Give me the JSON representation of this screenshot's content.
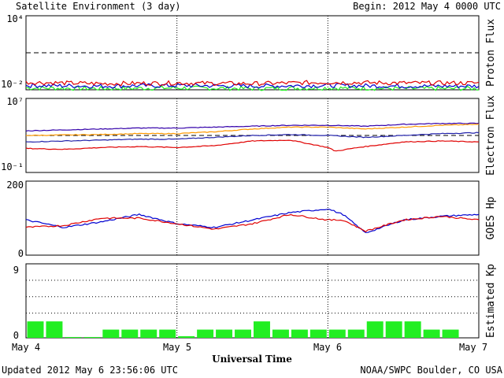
{
  "header": {
    "title": "Satellite Environment (3 day)",
    "begin": "Begin:  2012 May 4 0000 UTC"
  },
  "footer": {
    "updated": "Updated 2012 May  6 23:56:06 UTC",
    "credit": "NOAA/SWPC Boulder, CO USA",
    "xlabel": "Universal Time"
  },
  "xaxis": {
    "ticks": [
      "May 4",
      "May 5",
      "May 6",
      "May 7"
    ],
    "days": [
      0,
      1,
      2,
      3
    ],
    "range_days": [
      0,
      3
    ]
  },
  "colors": {
    "red": "#e00000",
    "blue": "#0000d0",
    "green": "#22ee22",
    "navy": "#2222aa",
    "orange": "#ff9900",
    "purple": "#3300aa",
    "dark": "#000000"
  },
  "chart_data": [
    {
      "type": "line",
      "ylabel": "Proton Flux",
      "yscale": "log",
      "ylim_exp": [
        -2,
        4
      ],
      "tick_labels": [
        "10⁴",
        "10⁻²"
      ],
      "threshold": 10,
      "grid": "vertical dotted at day boundaries",
      "series": [
        {
          "color": "red",
          "x_days": [
            0,
            0.5,
            1,
            1.5,
            2,
            2.5,
            3
          ],
          "log10_values": [
            -1.4,
            -1.5,
            -1.45,
            -1.5,
            -1.4,
            -1.45,
            -1.45
          ]
        },
        {
          "color": "blue",
          "x_days": [
            0,
            0.5,
            1,
            1.5,
            2,
            2.5,
            3
          ],
          "log10_values": [
            -1.65,
            -1.7,
            -1.65,
            -1.7,
            -1.65,
            -1.7,
            -1.7
          ]
        },
        {
          "color": "green",
          "x_days": [
            0,
            0.5,
            1,
            1.5,
            2,
            2.5,
            3
          ],
          "log10_values": [
            -1.85,
            -1.9,
            -1.85,
            -1.9,
            -1.85,
            -1.9,
            -1.9
          ]
        }
      ]
    },
    {
      "type": "line",
      "ylabel": "Electron Flux",
      "yscale": "log",
      "ylim_exp": [
        -1,
        7
      ],
      "tick_labels": [
        "10⁷",
        "10⁻¹"
      ],
      "threshold": 1000,
      "series": [
        {
          "color": "purple",
          "x_days": [
            0,
            0.25,
            0.5,
            0.75,
            1,
            1.25,
            1.5,
            1.75,
            2,
            2.25,
            2.5,
            2.75,
            3
          ],
          "log10_values": [
            3.5,
            3.6,
            3.7,
            3.8,
            3.8,
            3.9,
            4.0,
            4.1,
            4.1,
            4.0,
            4.2,
            4.3,
            4.3
          ]
        },
        {
          "color": "orange",
          "x_days": [
            0,
            0.25,
            0.5,
            0.75,
            1,
            1.25,
            1.5,
            1.75,
            2,
            2.25,
            2.5,
            2.75,
            3
          ],
          "log10_values": [
            3.0,
            3.05,
            3.1,
            3.2,
            3.2,
            3.4,
            3.7,
            3.9,
            3.9,
            3.7,
            3.9,
            4.1,
            4.2
          ]
        },
        {
          "color": "navy",
          "x_days": [
            0,
            0.25,
            0.5,
            0.75,
            1,
            1.25,
            1.5,
            1.75,
            2,
            2.25,
            2.5,
            2.75,
            3
          ],
          "log10_values": [
            2.3,
            2.4,
            2.5,
            2.6,
            2.6,
            2.8,
            3.0,
            3.1,
            3.0,
            2.8,
            3.0,
            3.2,
            3.3
          ]
        },
        {
          "color": "red",
          "x_days": [
            0,
            0.25,
            0.5,
            0.75,
            1,
            1.25,
            1.5,
            1.75,
            2,
            2.05,
            2.2,
            2.5,
            2.75,
            3
          ],
          "log10_values": [
            1.6,
            1.5,
            1.7,
            1.8,
            1.7,
            1.9,
            2.4,
            2.5,
            1.7,
            1.3,
            1.7,
            2.3,
            2.4,
            2.3
          ]
        }
      ]
    },
    {
      "type": "line",
      "ylabel": "GOES Hp",
      "ylim": [
        0,
        200
      ],
      "tick_labels": [
        "200",
        "0"
      ],
      "series": [
        {
          "color": "blue",
          "x_days": [
            0,
            0.25,
            0.5,
            0.75,
            1,
            1.25,
            1.5,
            1.75,
            2,
            2.1,
            2.25,
            2.5,
            2.75,
            3
          ],
          "values": [
            95,
            75,
            90,
            110,
            85,
            75,
            95,
            115,
            125,
            110,
            60,
            95,
            105,
            110
          ]
        },
        {
          "color": "red",
          "x_days": [
            0,
            0.25,
            0.5,
            0.75,
            1,
            1.25,
            1.5,
            1.75,
            2,
            2.1,
            2.25,
            2.5,
            2.75,
            3
          ],
          "values": [
            75,
            80,
            100,
            100,
            85,
            70,
            85,
            110,
            95,
            95,
            65,
            95,
            105,
            95
          ]
        }
      ]
    },
    {
      "type": "bar",
      "ylabel": "Estimated Kp",
      "ylim": [
        0,
        9
      ],
      "tick_labels": [
        "9",
        "0"
      ],
      "gridlines": [
        3,
        5,
        7,
        9
      ],
      "values": [
        2,
        2,
        0.1,
        0.1,
        1,
        1,
        1,
        1,
        0.2,
        1,
        1,
        1,
        2,
        1,
        1,
        1,
        1,
        1,
        2,
        2,
        2,
        1,
        1
      ]
    }
  ]
}
